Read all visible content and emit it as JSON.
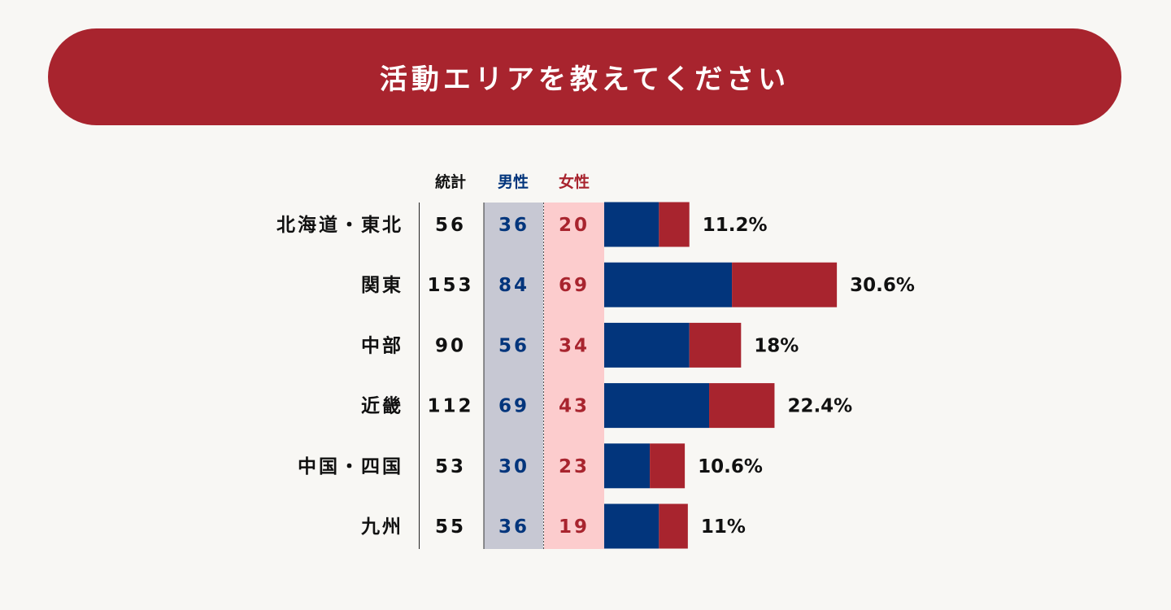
{
  "title": "活動エリアを教えてください",
  "headers": {
    "total": "統計",
    "male": "男性",
    "female": "女性"
  },
  "colors": {
    "banner": "#a8242e",
    "male": "#02357c",
    "female": "#a8242e",
    "male_col_bg": "#c7c8d3",
    "female_col_bg": "#fccccd"
  },
  "chart_data": {
    "type": "bar",
    "orientation": "horizontal",
    "stacked": true,
    "categories": [
      "北海道・東北",
      "関東",
      "中部",
      "近畿",
      "中国・四国",
      "九州"
    ],
    "total": [
      "56",
      "153",
      "90",
      "112",
      "53",
      "55"
    ],
    "series": [
      {
        "name": "男性",
        "values": [
          36,
          84,
          56,
          69,
          30,
          36
        ]
      },
      {
        "name": "女性",
        "values": [
          20,
          69,
          34,
          43,
          23,
          19
        ]
      }
    ],
    "percent_labels": [
      "11.2%",
      "30.6%",
      "18%",
      "22.4%",
      "10.6%",
      "11%"
    ]
  }
}
